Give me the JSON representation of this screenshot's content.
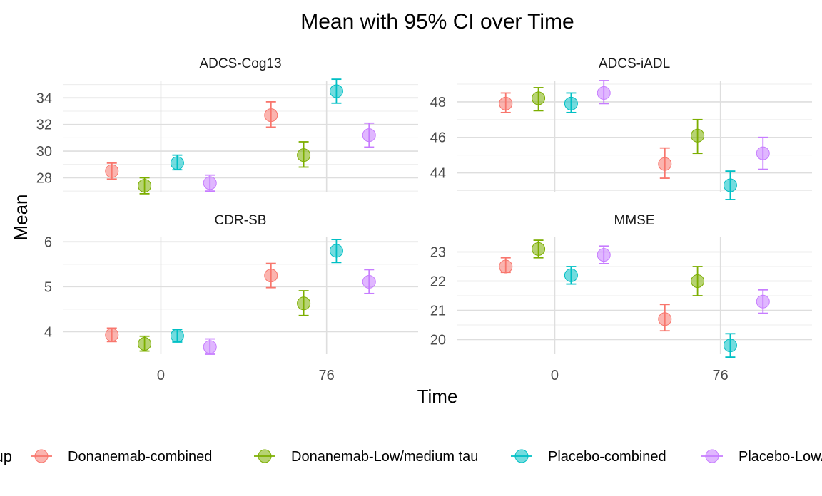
{
  "chart_data": {
    "type": "scatter",
    "title": "Mean with 95% CI over Time",
    "xlabel": "Time",
    "ylabel": "Mean",
    "legend_title": "Group",
    "legend_position": "bottom",
    "grid": true,
    "x_ticks": [
      0,
      76
    ],
    "x_tick_labels": [
      "0",
      "76"
    ],
    "groups": [
      {
        "name": "Donanemab-combined",
        "color": "#F8766D"
      },
      {
        "name": "Donanemab-Low/medium tau",
        "color": "#7CAE00"
      },
      {
        "name": "Placebo-combined",
        "color": "#00BFC4"
      },
      {
        "name": "Placebo-Low/medium tau",
        "color": "#C77CFF"
      }
    ],
    "panels": [
      {
        "title": "ADCS-Cog13",
        "ylim": [
          26.9,
          35.3
        ],
        "y_ticks": [
          28,
          30,
          32,
          34
        ],
        "points": [
          {
            "group": 0,
            "x": -22.5,
            "y": 28.5,
            "lo": 27.9,
            "hi": 29.1
          },
          {
            "group": 1,
            "x": -7.5,
            "y": 27.4,
            "lo": 26.8,
            "hi": 28.0
          },
          {
            "group": 2,
            "x": 7.5,
            "y": 29.1,
            "lo": 28.6,
            "hi": 29.7
          },
          {
            "group": 3,
            "x": 22.5,
            "y": 27.6,
            "lo": 27.0,
            "hi": 28.2
          },
          {
            "group": 0,
            "x": 50.5,
            "y": 32.7,
            "lo": 31.8,
            "hi": 33.7
          },
          {
            "group": 1,
            "x": 65.5,
            "y": 29.7,
            "lo": 28.8,
            "hi": 30.7
          },
          {
            "group": 2,
            "x": 80.5,
            "y": 34.5,
            "lo": 33.6,
            "hi": 35.4
          },
          {
            "group": 3,
            "x": 95.5,
            "y": 31.2,
            "lo": 30.3,
            "hi": 32.1
          }
        ]
      },
      {
        "title": "ADCS-iADL",
        "ylim": [
          42.9,
          49.2
        ],
        "y_ticks": [
          44,
          46,
          48
        ],
        "points": [
          {
            "group": 0,
            "x": -22.5,
            "y": 47.9,
            "lo": 47.4,
            "hi": 48.5
          },
          {
            "group": 1,
            "x": -7.5,
            "y": 48.2,
            "lo": 47.5,
            "hi": 48.8
          },
          {
            "group": 2,
            "x": 7.5,
            "y": 47.9,
            "lo": 47.4,
            "hi": 48.5
          },
          {
            "group": 3,
            "x": 22.5,
            "y": 48.5,
            "lo": 47.9,
            "hi": 49.2
          },
          {
            "group": 0,
            "x": 50.5,
            "y": 44.5,
            "lo": 43.7,
            "hi": 45.4
          },
          {
            "group": 1,
            "x": 65.5,
            "y": 46.1,
            "lo": 45.1,
            "hi": 47.0
          },
          {
            "group": 2,
            "x": 80.5,
            "y": 43.3,
            "lo": 42.5,
            "hi": 44.1
          },
          {
            "group": 3,
            "x": 95.5,
            "y": 45.1,
            "lo": 44.2,
            "hi": 46.0
          }
        ]
      },
      {
        "title": "CDR-SB",
        "ylim": [
          3.5,
          6.1
        ],
        "y_ticks": [
          4,
          5,
          6
        ],
        "points": [
          {
            "group": 0,
            "x": -22.5,
            "y": 3.93,
            "lo": 3.78,
            "hi": 4.08
          },
          {
            "group": 1,
            "x": -7.5,
            "y": 3.73,
            "lo": 3.57,
            "hi": 3.9
          },
          {
            "group": 2,
            "x": 7.5,
            "y": 3.91,
            "lo": 3.77,
            "hi": 4.05
          },
          {
            "group": 3,
            "x": 22.5,
            "y": 3.66,
            "lo": 3.5,
            "hi": 3.84
          },
          {
            "group": 0,
            "x": 50.5,
            "y": 5.25,
            "lo": 4.98,
            "hi": 5.52
          },
          {
            "group": 1,
            "x": 65.5,
            "y": 4.63,
            "lo": 4.36,
            "hi": 4.91
          },
          {
            "group": 2,
            "x": 80.5,
            "y": 5.8,
            "lo": 5.54,
            "hi": 6.05
          },
          {
            "group": 3,
            "x": 95.5,
            "y": 5.11,
            "lo": 4.85,
            "hi": 5.38
          }
        ]
      },
      {
        "title": "MMSE",
        "ylim": [
          19.5,
          23.5
        ],
        "y_ticks": [
          20,
          21,
          22,
          23
        ],
        "points": [
          {
            "group": 0,
            "x": -22.5,
            "y": 22.5,
            "lo": 22.3,
            "hi": 22.8
          },
          {
            "group": 1,
            "x": -7.5,
            "y": 23.1,
            "lo": 22.8,
            "hi": 23.4
          },
          {
            "group": 2,
            "x": 7.5,
            "y": 22.2,
            "lo": 21.9,
            "hi": 22.5
          },
          {
            "group": 3,
            "x": 22.5,
            "y": 22.9,
            "lo": 22.6,
            "hi": 23.2
          },
          {
            "group": 0,
            "x": 50.5,
            "y": 20.7,
            "lo": 20.3,
            "hi": 21.2
          },
          {
            "group": 1,
            "x": 65.5,
            "y": 22.0,
            "lo": 21.5,
            "hi": 22.5
          },
          {
            "group": 2,
            "x": 80.5,
            "y": 19.8,
            "lo": 19.4,
            "hi": 20.2
          },
          {
            "group": 3,
            "x": 95.5,
            "y": 21.3,
            "lo": 20.9,
            "hi": 21.7
          }
        ]
      }
    ]
  }
}
